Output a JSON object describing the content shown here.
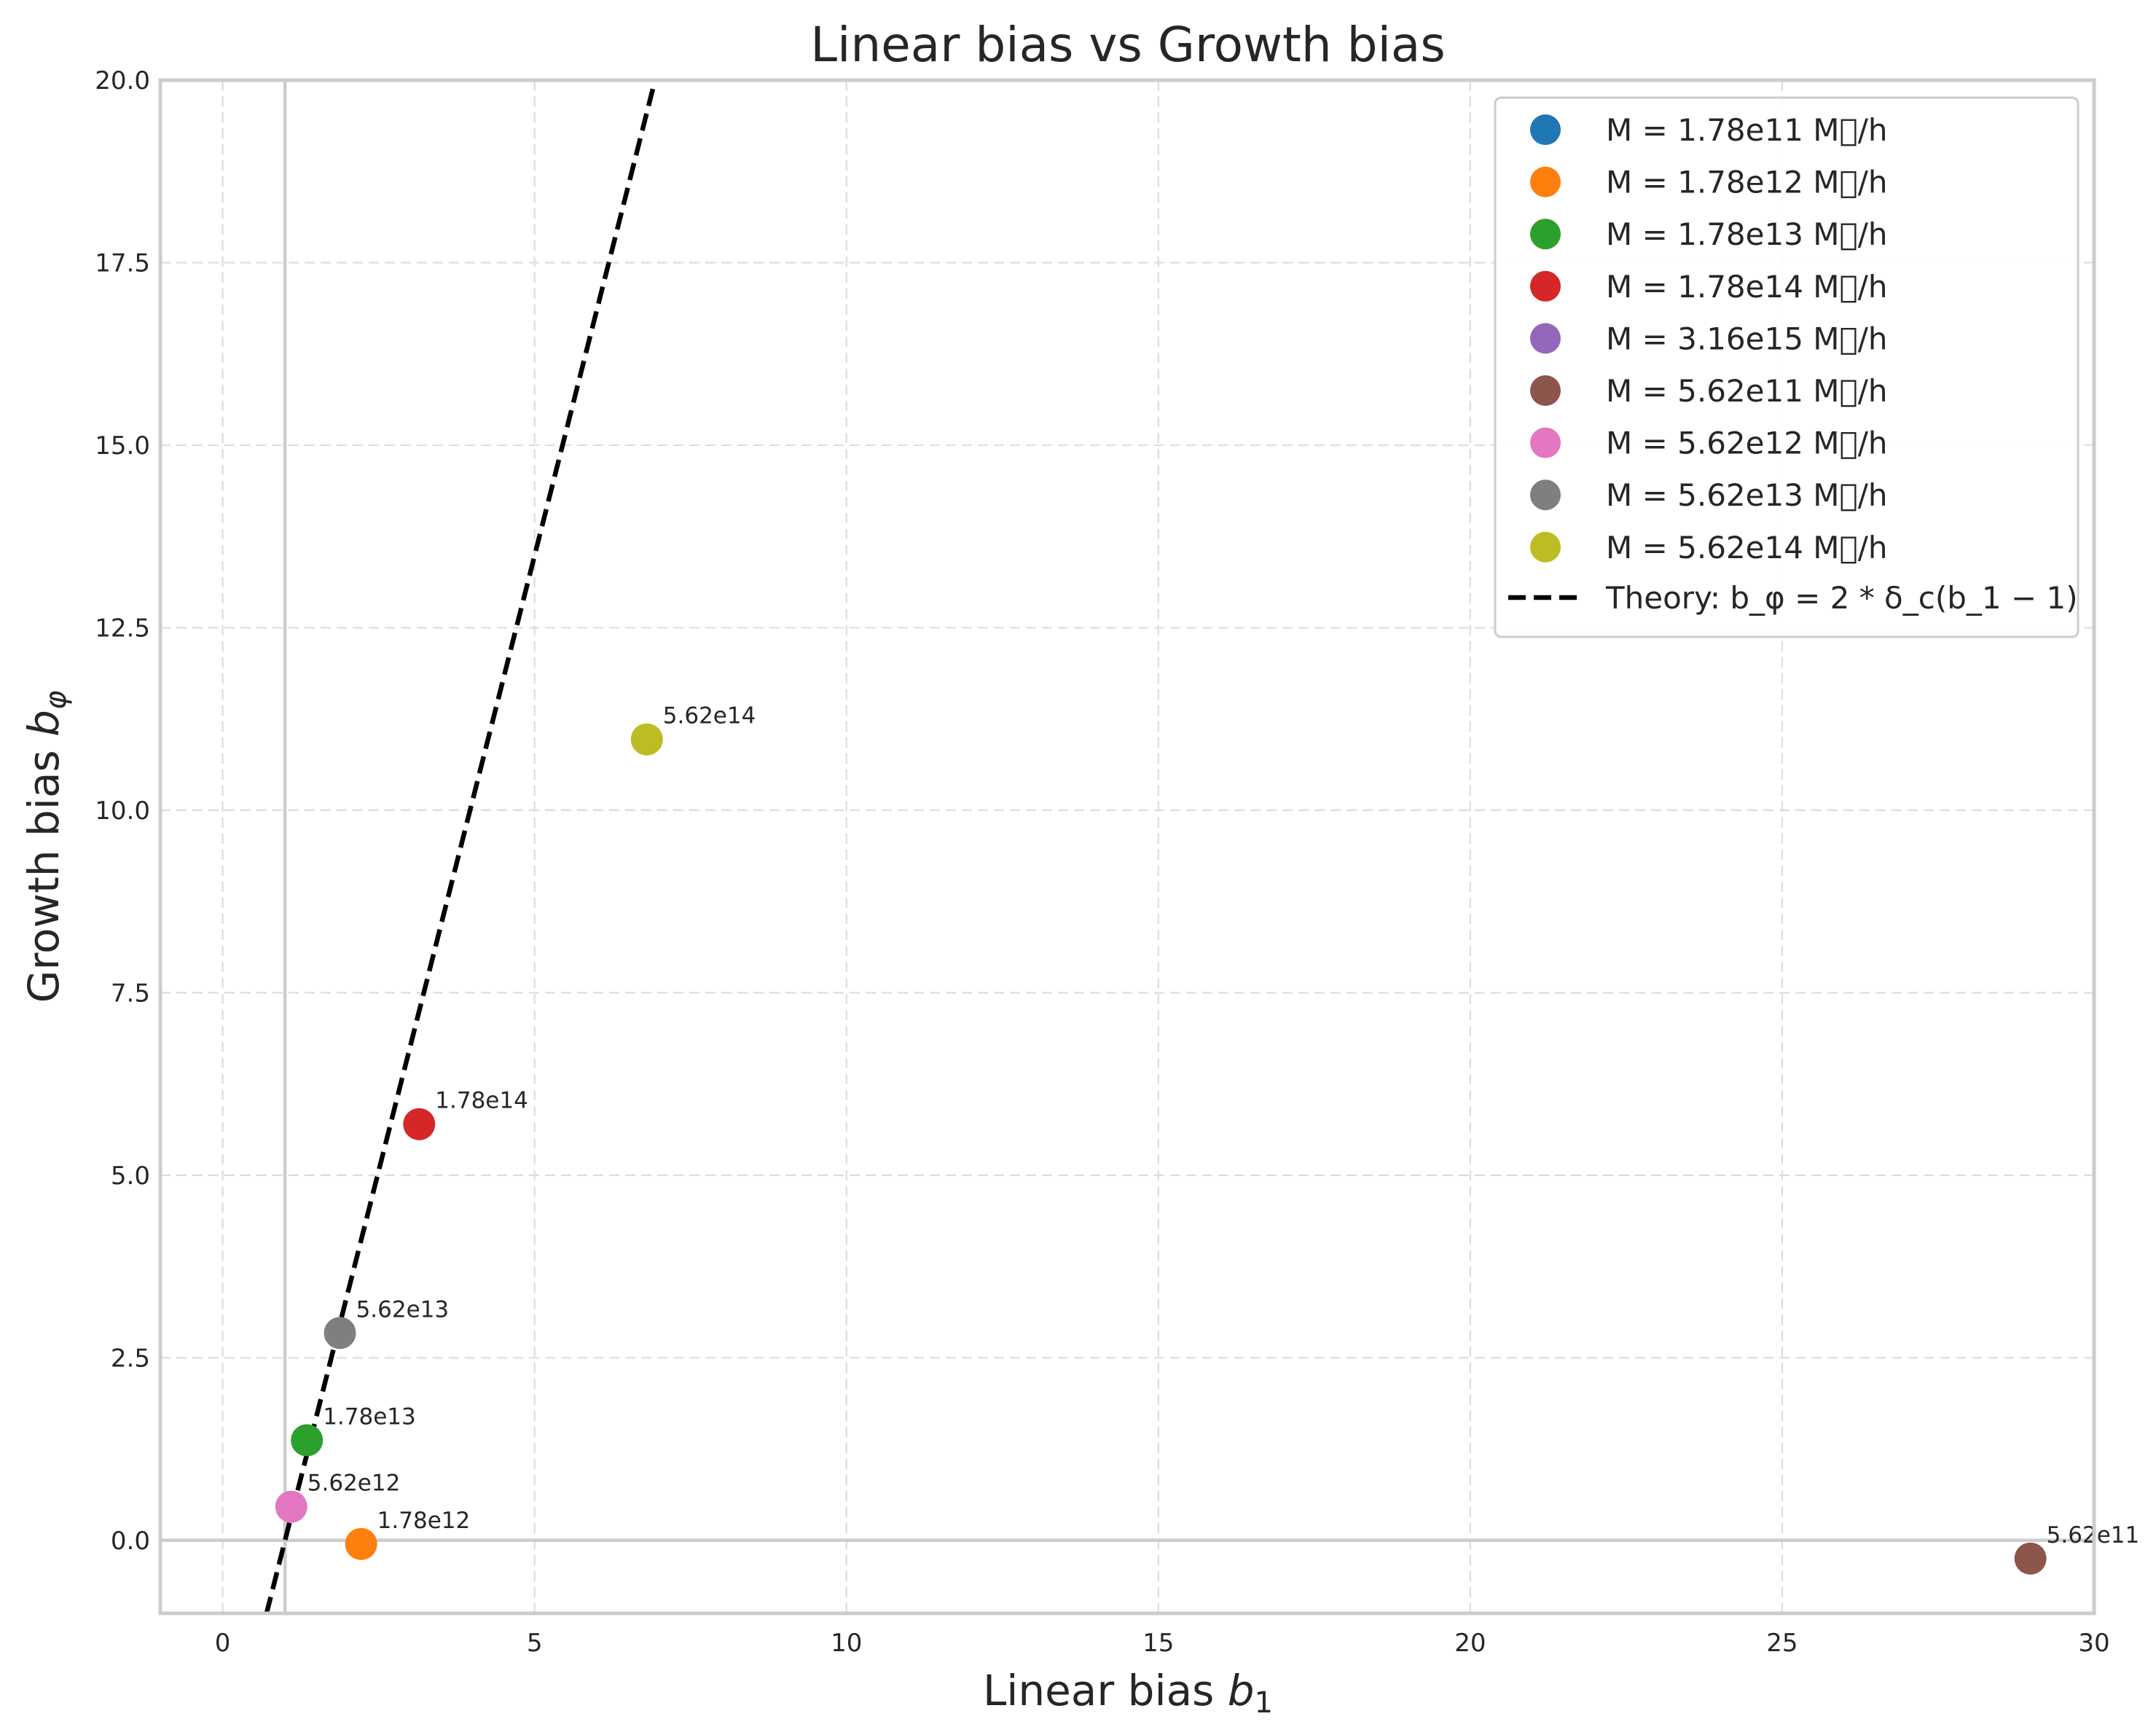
{
  "chart_data": {
    "type": "scatter",
    "title": "Linear bias vs Growth bias",
    "xlabel": {
      "prefix": "Linear bias ",
      "var": "b",
      "sub": "1"
    },
    "ylabel": {
      "prefix": "Growth bias ",
      "var": "b",
      "sub": "φ"
    },
    "xlim": [
      -1,
      30
    ],
    "ylim": [
      -1,
      20
    ],
    "xticks": [
      0,
      5,
      10,
      15,
      20,
      25,
      30
    ],
    "yticks": [
      0.0,
      2.5,
      5.0,
      7.5,
      10.0,
      12.5,
      15.0,
      17.5,
      20.0
    ],
    "grid": true,
    "legend_position": "upper right",
    "reference_lines": {
      "vertical_x": 1,
      "horizontal_y": 0
    },
    "series": [
      {
        "name": "M = 1.78e11 M\u0000/h",
        "color": "#1f77b4",
        "points": []
      },
      {
        "name": "M = 1.78e12 M\u0000/h",
        "color": "#ff7f0e",
        "points": [
          {
            "x": 2.22,
            "y": -0.05,
            "label": "1.78e12"
          }
        ]
      },
      {
        "name": "M = 1.78e13 M\u0000/h",
        "color": "#2ca02c",
        "points": [
          {
            "x": 1.35,
            "y": 1.37,
            "label": "1.78e13"
          }
        ]
      },
      {
        "name": "M = 1.78e14 M\u0000/h",
        "color": "#d62728",
        "points": [
          {
            "x": 3.15,
            "y": 5.7,
            "label": "1.78e14"
          }
        ]
      },
      {
        "name": "M = 3.16e15 M\u0000/h",
        "color": "#9467bd",
        "points": []
      },
      {
        "name": "M = 5.62e11 M\u0000/h",
        "color": "#8c564b",
        "points": [
          {
            "x": 28.98,
            "y": -0.25,
            "label": "5.62e11"
          }
        ]
      },
      {
        "name": "M = 5.62e12 M\u0000/h",
        "color": "#e377c2",
        "points": [
          {
            "x": 1.1,
            "y": 0.46,
            "label": "5.62e12"
          }
        ]
      },
      {
        "name": "M = 5.62e13 M\u0000/h",
        "color": "#7f7f7f",
        "points": [
          {
            "x": 1.88,
            "y": 2.84,
            "label": "5.62e13"
          }
        ]
      },
      {
        "name": "M = 5.62e14 M\u0000/h",
        "color": "#bcbd22",
        "points": [
          {
            "x": 6.8,
            "y": 10.97,
            "label": "5.62e14"
          }
        ]
      }
    ],
    "theory": {
      "name_prefix": "Theory: ",
      "formula": "b_φ = 2 * δ_c(b_1 − 1)",
      "delta_c": 1.686,
      "color": "#000000",
      "style": "dashed"
    }
  }
}
